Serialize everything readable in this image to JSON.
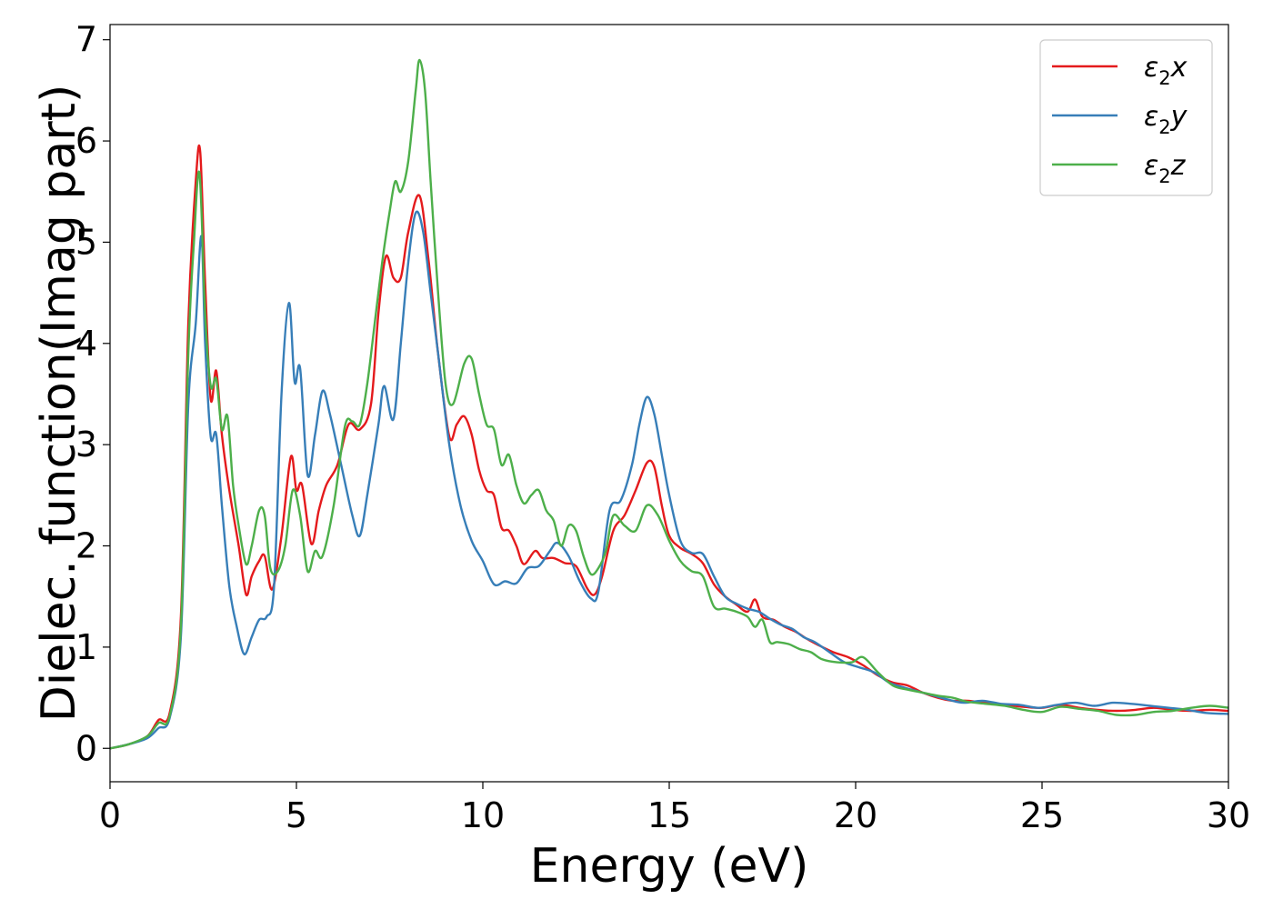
{
  "chart_data": {
    "type": "line",
    "title": "",
    "xlabel": "Energy (eV)",
    "ylabel": "Dielec. function(Imag part)",
    "xlim": [
      0,
      30
    ],
    "ylim": [
      -0.33,
      7.15
    ],
    "xticks": [
      0,
      5,
      10,
      15,
      20,
      25,
      30
    ],
    "yticks": [
      0,
      1,
      2,
      3,
      4,
      5,
      6,
      7
    ],
    "grid": false,
    "legend_position": "top-right",
    "series": [
      {
        "name": "ε₂x",
        "legend": {
          "base": "ε",
          "sub": "2",
          "var": "x"
        },
        "color": "#e41a1c",
        "points": [
          [
            0,
            0
          ],
          [
            0.5,
            0.04
          ],
          [
            1.0,
            0.12
          ],
          [
            1.3,
            0.28
          ],
          [
            1.6,
            0.35
          ],
          [
            1.9,
            1.3
          ],
          [
            2.1,
            4.2
          ],
          [
            2.3,
            5.6
          ],
          [
            2.42,
            5.89
          ],
          [
            2.55,
            4.6
          ],
          [
            2.7,
            3.45
          ],
          [
            2.85,
            3.73
          ],
          [
            3.0,
            3.1
          ],
          [
            3.2,
            2.55
          ],
          [
            3.45,
            2.0
          ],
          [
            3.65,
            1.52
          ],
          [
            3.8,
            1.7
          ],
          [
            4.0,
            1.85
          ],
          [
            4.15,
            1.9
          ],
          [
            4.35,
            1.57
          ],
          [
            4.6,
            2.1
          ],
          [
            4.85,
            2.88
          ],
          [
            5.0,
            2.55
          ],
          [
            5.15,
            2.6
          ],
          [
            5.4,
            2.02
          ],
          [
            5.6,
            2.35
          ],
          [
            5.8,
            2.6
          ],
          [
            6.1,
            2.8
          ],
          [
            6.4,
            3.2
          ],
          [
            6.7,
            3.15
          ],
          [
            7.0,
            3.4
          ],
          [
            7.2,
            4.3
          ],
          [
            7.4,
            4.86
          ],
          [
            7.6,
            4.65
          ],
          [
            7.8,
            4.65
          ],
          [
            8.0,
            5.1
          ],
          [
            8.3,
            5.46
          ],
          [
            8.55,
            4.8
          ],
          [
            8.8,
            3.9
          ],
          [
            9.1,
            3.08
          ],
          [
            9.3,
            3.2
          ],
          [
            9.5,
            3.28
          ],
          [
            9.7,
            3.1
          ],
          [
            9.9,
            2.75
          ],
          [
            10.1,
            2.55
          ],
          [
            10.3,
            2.5
          ],
          [
            10.5,
            2.18
          ],
          [
            10.7,
            2.15
          ],
          [
            10.9,
            2.0
          ],
          [
            11.1,
            1.82
          ],
          [
            11.4,
            1.95
          ],
          [
            11.6,
            1.88
          ],
          [
            11.9,
            1.88
          ],
          [
            12.2,
            1.83
          ],
          [
            12.5,
            1.8
          ],
          [
            12.8,
            1.58
          ],
          [
            13.0,
            1.52
          ],
          [
            13.2,
            1.7
          ],
          [
            13.5,
            2.15
          ],
          [
            13.8,
            2.3
          ],
          [
            14.1,
            2.55
          ],
          [
            14.4,
            2.82
          ],
          [
            14.6,
            2.78
          ],
          [
            14.8,
            2.4
          ],
          [
            15.0,
            2.1
          ],
          [
            15.3,
            1.98
          ],
          [
            15.6,
            1.92
          ],
          [
            15.9,
            1.83
          ],
          [
            16.2,
            1.62
          ],
          [
            16.5,
            1.5
          ],
          [
            16.8,
            1.42
          ],
          [
            17.1,
            1.35
          ],
          [
            17.3,
            1.47
          ],
          [
            17.5,
            1.3
          ],
          [
            17.8,
            1.27
          ],
          [
            18.1,
            1.2
          ],
          [
            18.4,
            1.15
          ],
          [
            18.7,
            1.08
          ],
          [
            19.0,
            1.02
          ],
          [
            19.4,
            0.95
          ],
          [
            19.8,
            0.9
          ],
          [
            20.2,
            0.82
          ],
          [
            20.6,
            0.72
          ],
          [
            21.0,
            0.65
          ],
          [
            21.4,
            0.62
          ],
          [
            21.8,
            0.55
          ],
          [
            22.2,
            0.5
          ],
          [
            22.6,
            0.47
          ],
          [
            23.0,
            0.47
          ],
          [
            23.5,
            0.45
          ],
          [
            24.0,
            0.43
          ],
          [
            24.5,
            0.41
          ],
          [
            25.0,
            0.4
          ],
          [
            25.5,
            0.43
          ],
          [
            26.0,
            0.4
          ],
          [
            26.5,
            0.38
          ],
          [
            27.0,
            0.37
          ],
          [
            27.5,
            0.38
          ],
          [
            28.0,
            0.4
          ],
          [
            28.5,
            0.38
          ],
          [
            29.0,
            0.37
          ],
          [
            29.5,
            0.38
          ],
          [
            30.0,
            0.37
          ]
        ]
      },
      {
        "name": "ε₂y",
        "legend": {
          "base": "ε",
          "sub": "2",
          "var": "y"
        },
        "color": "#377eb8",
        "points": [
          [
            0,
            0
          ],
          [
            0.5,
            0.04
          ],
          [
            1.0,
            0.1
          ],
          [
            1.3,
            0.2
          ],
          [
            1.6,
            0.3
          ],
          [
            1.9,
            1.1
          ],
          [
            2.1,
            3.4
          ],
          [
            2.3,
            4.2
          ],
          [
            2.45,
            5.06
          ],
          [
            2.55,
            4.0
          ],
          [
            2.7,
            3.08
          ],
          [
            2.85,
            3.1
          ],
          [
            3.0,
            2.4
          ],
          [
            3.2,
            1.6
          ],
          [
            3.4,
            1.2
          ],
          [
            3.6,
            0.93
          ],
          [
            3.8,
            1.1
          ],
          [
            4.0,
            1.27
          ],
          [
            4.2,
            1.3
          ],
          [
            4.4,
            1.6
          ],
          [
            4.6,
            3.5
          ],
          [
            4.8,
            4.4
          ],
          [
            4.95,
            3.62
          ],
          [
            5.1,
            3.75
          ],
          [
            5.3,
            2.7
          ],
          [
            5.5,
            3.1
          ],
          [
            5.7,
            3.53
          ],
          [
            5.9,
            3.3
          ],
          [
            6.2,
            2.8
          ],
          [
            6.5,
            2.3
          ],
          [
            6.7,
            2.1
          ],
          [
            6.9,
            2.5
          ],
          [
            7.2,
            3.2
          ],
          [
            7.35,
            3.58
          ],
          [
            7.6,
            3.25
          ],
          [
            7.8,
            4.0
          ],
          [
            8.0,
            4.8
          ],
          [
            8.2,
            5.29
          ],
          [
            8.4,
            5.1
          ],
          [
            8.6,
            4.5
          ],
          [
            8.8,
            3.9
          ],
          [
            9.1,
            3.0
          ],
          [
            9.4,
            2.4
          ],
          [
            9.7,
            2.05
          ],
          [
            10.0,
            1.85
          ],
          [
            10.3,
            1.62
          ],
          [
            10.6,
            1.65
          ],
          [
            10.9,
            1.63
          ],
          [
            11.2,
            1.78
          ],
          [
            11.5,
            1.8
          ],
          [
            11.8,
            1.95
          ],
          [
            12.0,
            2.03
          ],
          [
            12.3,
            1.9
          ],
          [
            12.6,
            1.65
          ],
          [
            12.9,
            1.48
          ],
          [
            13.1,
            1.55
          ],
          [
            13.4,
            2.35
          ],
          [
            13.7,
            2.45
          ],
          [
            14.0,
            2.8
          ],
          [
            14.2,
            3.2
          ],
          [
            14.4,
            3.47
          ],
          [
            14.6,
            3.3
          ],
          [
            14.8,
            2.9
          ],
          [
            15.0,
            2.5
          ],
          [
            15.3,
            2.05
          ],
          [
            15.6,
            1.93
          ],
          [
            15.9,
            1.92
          ],
          [
            16.2,
            1.7
          ],
          [
            16.5,
            1.5
          ],
          [
            16.8,
            1.43
          ],
          [
            17.1,
            1.38
          ],
          [
            17.4,
            1.35
          ],
          [
            17.7,
            1.28
          ],
          [
            18.0,
            1.22
          ],
          [
            18.3,
            1.18
          ],
          [
            18.6,
            1.1
          ],
          [
            18.9,
            1.05
          ],
          [
            19.3,
            0.95
          ],
          [
            19.7,
            0.85
          ],
          [
            20.1,
            0.8
          ],
          [
            20.5,
            0.75
          ],
          [
            20.9,
            0.65
          ],
          [
            21.3,
            0.6
          ],
          [
            21.7,
            0.56
          ],
          [
            22.1,
            0.52
          ],
          [
            22.5,
            0.48
          ],
          [
            22.9,
            0.45
          ],
          [
            23.4,
            0.47
          ],
          [
            23.9,
            0.44
          ],
          [
            24.4,
            0.43
          ],
          [
            24.9,
            0.4
          ],
          [
            25.4,
            0.43
          ],
          [
            25.9,
            0.45
          ],
          [
            26.4,
            0.42
          ],
          [
            26.9,
            0.45
          ],
          [
            27.4,
            0.44
          ],
          [
            27.9,
            0.42
          ],
          [
            28.4,
            0.4
          ],
          [
            28.9,
            0.38
          ],
          [
            29.4,
            0.35
          ],
          [
            30.0,
            0.34
          ]
        ]
      },
      {
        "name": "ε₂z",
        "legend": {
          "base": "ε",
          "sub": "2",
          "var": "z"
        },
        "color": "#4daf4a",
        "points": [
          [
            0,
            0
          ],
          [
            0.5,
            0.04
          ],
          [
            1.0,
            0.12
          ],
          [
            1.3,
            0.25
          ],
          [
            1.6,
            0.32
          ],
          [
            1.9,
            1.2
          ],
          [
            2.1,
            3.9
          ],
          [
            2.25,
            5.0
          ],
          [
            2.4,
            5.68
          ],
          [
            2.55,
            4.3
          ],
          [
            2.7,
            3.58
          ],
          [
            2.85,
            3.65
          ],
          [
            3.0,
            3.15
          ],
          [
            3.15,
            3.28
          ],
          [
            3.3,
            2.6
          ],
          [
            3.45,
            2.2
          ],
          [
            3.65,
            1.82
          ],
          [
            3.8,
            2.0
          ],
          [
            4.0,
            2.35
          ],
          [
            4.15,
            2.3
          ],
          [
            4.3,
            1.78
          ],
          [
            4.5,
            1.75
          ],
          [
            4.7,
            2.0
          ],
          [
            4.9,
            2.55
          ],
          [
            5.1,
            2.3
          ],
          [
            5.3,
            1.75
          ],
          [
            5.5,
            1.95
          ],
          [
            5.7,
            1.9
          ],
          [
            6.0,
            2.4
          ],
          [
            6.3,
            3.18
          ],
          [
            6.5,
            3.23
          ],
          [
            6.7,
            3.2
          ],
          [
            6.9,
            3.6
          ],
          [
            7.1,
            4.2
          ],
          [
            7.3,
            4.8
          ],
          [
            7.5,
            5.3
          ],
          [
            7.65,
            5.6
          ],
          [
            7.8,
            5.5
          ],
          [
            8.0,
            5.8
          ],
          [
            8.2,
            6.5
          ],
          [
            8.3,
            6.8
          ],
          [
            8.45,
            6.5
          ],
          [
            8.6,
            5.6
          ],
          [
            8.8,
            4.5
          ],
          [
            9.0,
            3.6
          ],
          [
            9.2,
            3.4
          ],
          [
            9.5,
            3.8
          ],
          [
            9.7,
            3.85
          ],
          [
            9.9,
            3.5
          ],
          [
            10.1,
            3.2
          ],
          [
            10.3,
            3.15
          ],
          [
            10.5,
            2.8
          ],
          [
            10.7,
            2.9
          ],
          [
            10.9,
            2.6
          ],
          [
            11.1,
            2.42
          ],
          [
            11.3,
            2.5
          ],
          [
            11.5,
            2.55
          ],
          [
            11.7,
            2.35
          ],
          [
            11.9,
            2.25
          ],
          [
            12.1,
            2.0
          ],
          [
            12.3,
            2.2
          ],
          [
            12.5,
            2.15
          ],
          [
            12.7,
            1.9
          ],
          [
            12.9,
            1.72
          ],
          [
            13.1,
            1.78
          ],
          [
            13.3,
            1.95
          ],
          [
            13.5,
            2.3
          ],
          [
            13.8,
            2.2
          ],
          [
            14.1,
            2.15
          ],
          [
            14.4,
            2.4
          ],
          [
            14.7,
            2.3
          ],
          [
            15.0,
            2.05
          ],
          [
            15.3,
            1.85
          ],
          [
            15.6,
            1.75
          ],
          [
            15.9,
            1.7
          ],
          [
            16.2,
            1.4
          ],
          [
            16.5,
            1.38
          ],
          [
            16.8,
            1.35
          ],
          [
            17.1,
            1.3
          ],
          [
            17.3,
            1.2
          ],
          [
            17.5,
            1.27
          ],
          [
            17.7,
            1.05
          ],
          [
            17.9,
            1.05
          ],
          [
            18.2,
            1.03
          ],
          [
            18.5,
            0.98
          ],
          [
            18.8,
            0.95
          ],
          [
            19.1,
            0.88
          ],
          [
            19.5,
            0.85
          ],
          [
            19.9,
            0.85
          ],
          [
            20.2,
            0.9
          ],
          [
            20.6,
            0.75
          ],
          [
            21.0,
            0.62
          ],
          [
            21.4,
            0.58
          ],
          [
            21.8,
            0.55
          ],
          [
            22.2,
            0.52
          ],
          [
            22.6,
            0.5
          ],
          [
            23.0,
            0.46
          ],
          [
            23.5,
            0.44
          ],
          [
            24.0,
            0.42
          ],
          [
            24.5,
            0.38
          ],
          [
            25.0,
            0.36
          ],
          [
            25.5,
            0.41
          ],
          [
            26.0,
            0.39
          ],
          [
            26.5,
            0.37
          ],
          [
            27.0,
            0.33
          ],
          [
            27.5,
            0.33
          ],
          [
            28.0,
            0.36
          ],
          [
            28.5,
            0.37
          ],
          [
            29.0,
            0.4
          ],
          [
            29.5,
            0.42
          ],
          [
            30.0,
            0.4
          ]
        ]
      }
    ]
  }
}
